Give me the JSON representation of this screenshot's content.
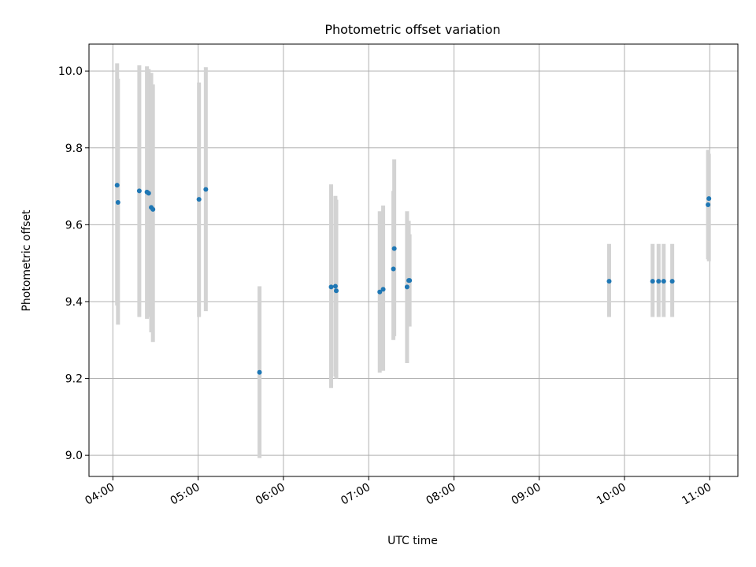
{
  "chart_data": {
    "type": "scatter",
    "title": "Photometric offset variation",
    "xlabel": "UTC time",
    "ylabel": "Photometric offset",
    "x_unit": "hours UTC",
    "xlim": [
      3.72,
      11.33
    ],
    "ylim": [
      8.945,
      10.07
    ],
    "x_ticks": [
      {
        "value": 4,
        "label": "04:00"
      },
      {
        "value": 5,
        "label": "05:00"
      },
      {
        "value": 6,
        "label": "06:00"
      },
      {
        "value": 7,
        "label": "07:00"
      },
      {
        "value": 8,
        "label": "08:00"
      },
      {
        "value": 9,
        "label": "09:00"
      },
      {
        "value": 10,
        "label": "10:00"
      },
      {
        "value": 11,
        "label": "11:00"
      }
    ],
    "y_ticks": [
      {
        "value": 9.0,
        "label": "9.0"
      },
      {
        "value": 9.2,
        "label": "9.2"
      },
      {
        "value": 9.4,
        "label": "9.4"
      },
      {
        "value": 9.6,
        "label": "9.6"
      },
      {
        "value": 9.8,
        "label": "9.8"
      },
      {
        "value": 10.0,
        "label": "10.0"
      }
    ],
    "grid": true,
    "marker_color": "#1f77b4",
    "errorbar_color": "#d3d3d3",
    "points": [
      {
        "x": 4.05,
        "y": 9.703,
        "ylo": 9.39,
        "yhi": 10.02
      },
      {
        "x": 4.06,
        "y": 9.658,
        "ylo": 9.34,
        "yhi": 9.98
      },
      {
        "x": 4.31,
        "y": 9.688,
        "ylo": 9.36,
        "yhi": 10.015
      },
      {
        "x": 4.4,
        "y": 9.685,
        "ylo": 9.355,
        "yhi": 10.012
      },
      {
        "x": 4.42,
        "y": 9.682,
        "ylo": 9.36,
        "yhi": 10.005
      },
      {
        "x": 4.45,
        "y": 9.645,
        "ylo": 9.32,
        "yhi": 9.995
      },
      {
        "x": 4.47,
        "y": 9.64,
        "ylo": 9.295,
        "yhi": 9.965
      },
      {
        "x": 5.01,
        "y": 9.666,
        "ylo": 9.36,
        "yhi": 9.97
      },
      {
        "x": 5.09,
        "y": 9.692,
        "ylo": 9.375,
        "yhi": 10.01
      },
      {
        "x": 5.72,
        "y": 9.216,
        "ylo": 8.993,
        "yhi": 9.44
      },
      {
        "x": 6.56,
        "y": 9.438,
        "ylo": 9.175,
        "yhi": 9.705
      },
      {
        "x": 6.61,
        "y": 9.44,
        "ylo": 9.205,
        "yhi": 9.675
      },
      {
        "x": 6.62,
        "y": 9.428,
        "ylo": 9.2,
        "yhi": 9.665
      },
      {
        "x": 7.13,
        "y": 9.425,
        "ylo": 9.215,
        "yhi": 9.635
      },
      {
        "x": 7.17,
        "y": 9.432,
        "ylo": 9.22,
        "yhi": 9.65
      },
      {
        "x": 7.29,
        "y": 9.485,
        "ylo": 9.3,
        "yhi": 9.688
      },
      {
        "x": 7.3,
        "y": 9.538,
        "ylo": 9.31,
        "yhi": 9.77
      },
      {
        "x": 7.45,
        "y": 9.438,
        "ylo": 9.24,
        "yhi": 9.635
      },
      {
        "x": 7.47,
        "y": 9.455,
        "ylo": 9.34,
        "yhi": 9.61
      },
      {
        "x": 7.48,
        "y": 9.455,
        "ylo": 9.335,
        "yhi": 9.575
      },
      {
        "x": 9.82,
        "y": 9.453,
        "ylo": 9.36,
        "yhi": 9.55
      },
      {
        "x": 10.33,
        "y": 9.453,
        "ylo": 9.36,
        "yhi": 9.55
      },
      {
        "x": 10.4,
        "y": 9.453,
        "ylo": 9.36,
        "yhi": 9.55
      },
      {
        "x": 10.46,
        "y": 9.453,
        "ylo": 9.36,
        "yhi": 9.55
      },
      {
        "x": 10.56,
        "y": 9.453,
        "ylo": 9.36,
        "yhi": 9.55
      },
      {
        "x": 10.98,
        "y": 9.652,
        "ylo": 9.51,
        "yhi": 9.795
      },
      {
        "x": 10.99,
        "y": 9.668,
        "ylo": 9.505,
        "yhi": 9.785
      }
    ]
  }
}
